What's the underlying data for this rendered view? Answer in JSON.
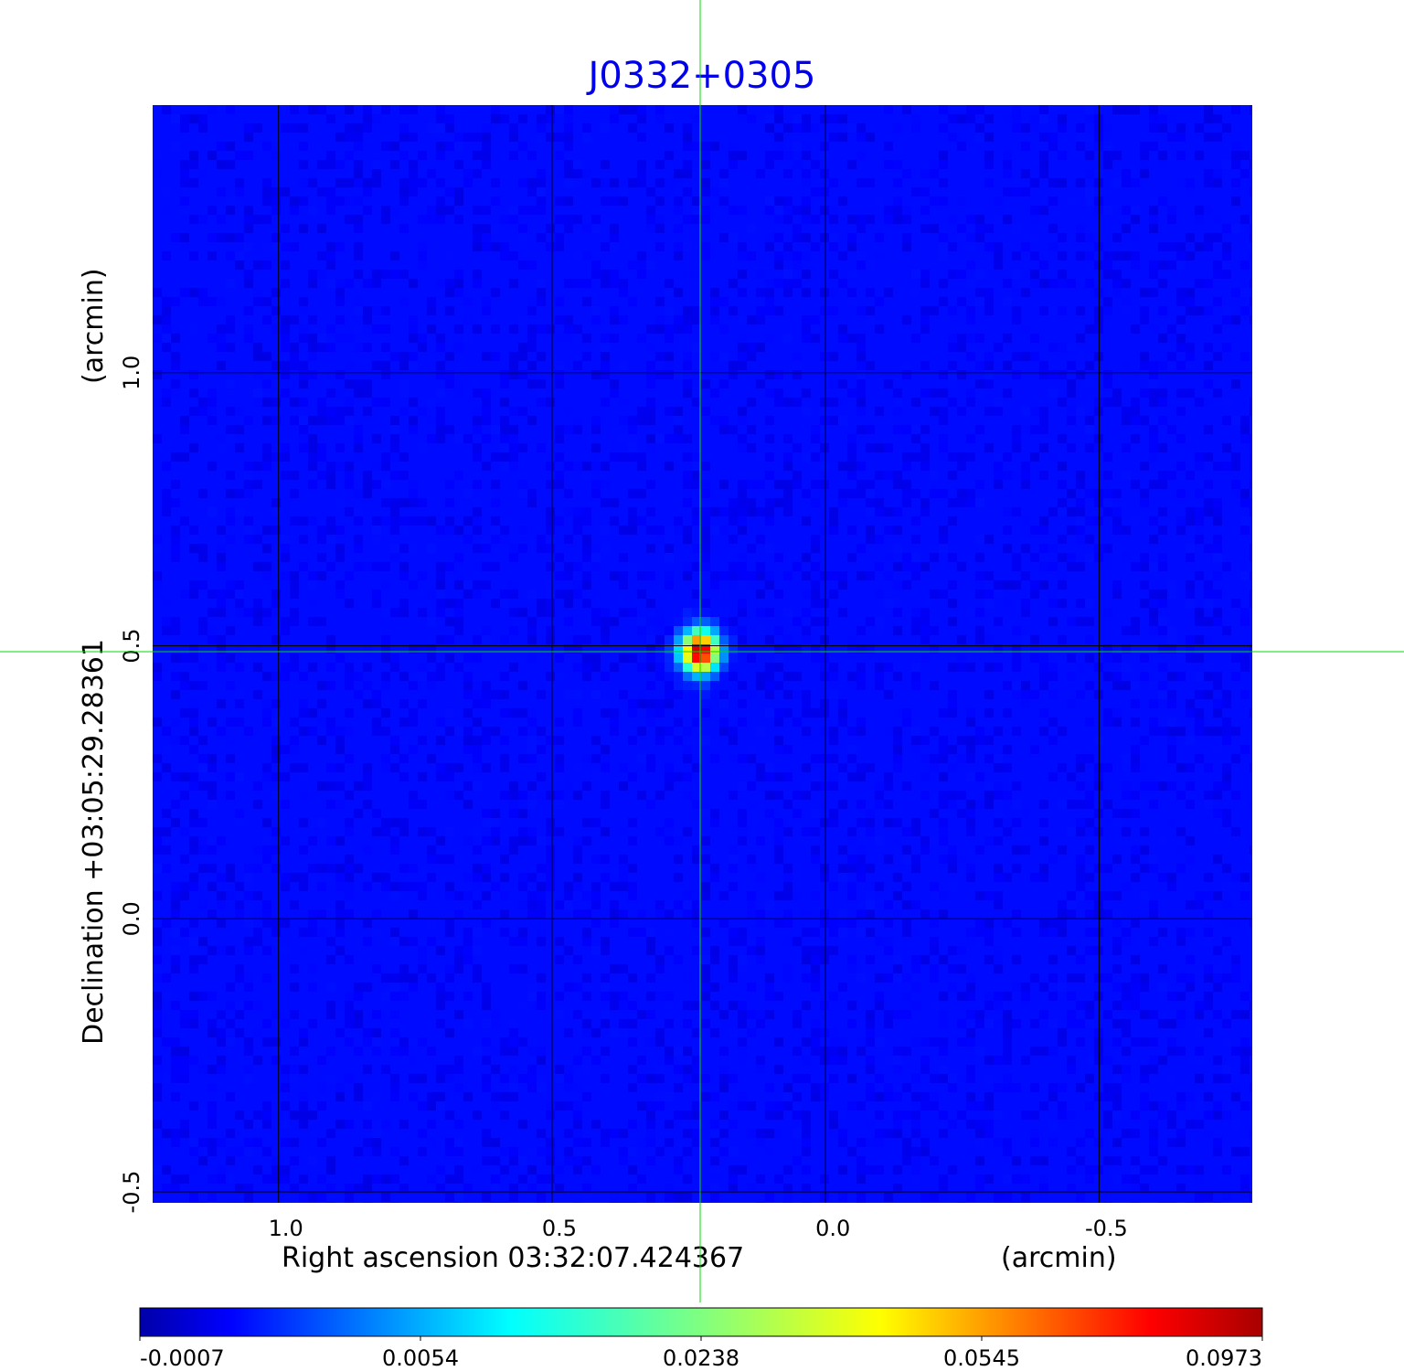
{
  "chart_data": {
    "type": "heatmap",
    "title": "J0332+0305",
    "xlabel": "Right ascension  03:32:07.424367",
    "xunit": "(arcmin)",
    "ylabel": "Declination  +03:05:29.28361",
    "yunit": "(arcmin)",
    "xlim": [
      1.23,
      -0.78
    ],
    "ylim": [
      -0.52,
      1.49
    ],
    "x_ticks": [
      "1.0",
      "0.5",
      "0.0",
      "-0.5"
    ],
    "x_tick_values": [
      1.0,
      0.5,
      0.0,
      -0.5
    ],
    "y_ticks": [
      "-0.5",
      "0.0",
      "0.5",
      "1.0"
    ],
    "y_tick_values": [
      -0.5,
      0.0,
      0.5,
      1.0
    ],
    "grid": true,
    "crosshair": {
      "x": 0.23,
      "y": 0.49,
      "color": "#00dd00"
    },
    "source_peak": {
      "x": 0.23,
      "y": 0.49,
      "value": 0.0973
    },
    "colormap": "jet",
    "colorbar": {
      "ticks": [
        "-0.0007",
        "0.0054",
        "0.0238",
        "0.0545",
        "0.0973"
      ],
      "min": -0.0007,
      "max": 0.0973,
      "location": "bottom"
    },
    "title_color": "#0000ee"
  }
}
